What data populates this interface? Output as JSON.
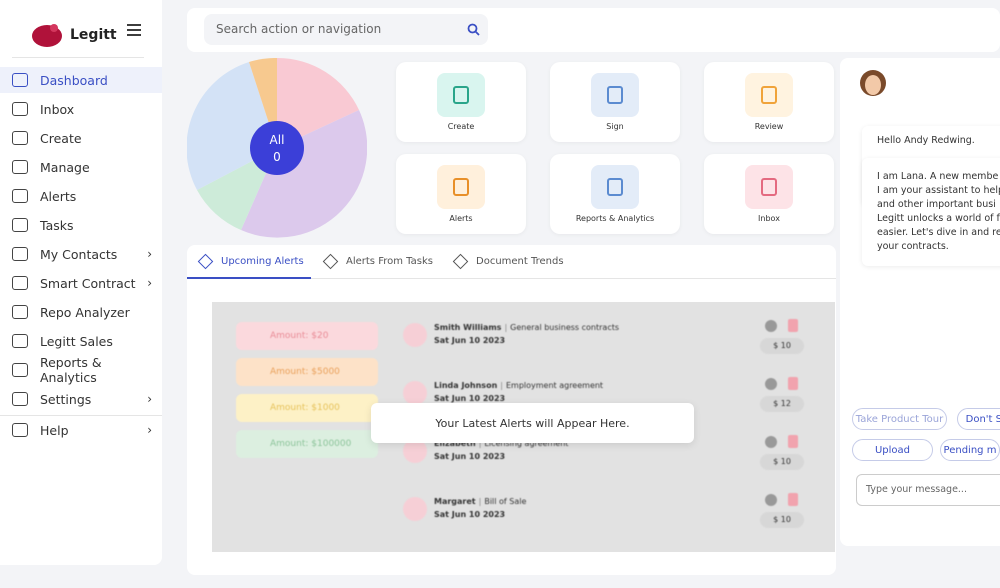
{
  "brand": "Legitt",
  "search_placeholder": "Search action or navigation",
  "nav": [
    {
      "label": "Dashboard",
      "active": true
    },
    {
      "label": "Inbox"
    },
    {
      "label": "Create"
    },
    {
      "label": "Manage"
    },
    {
      "label": "Alerts"
    },
    {
      "label": "Tasks"
    },
    {
      "label": "My Contacts",
      "submenu": true
    },
    {
      "label": "Smart Contract",
      "submenu": true
    },
    {
      "label": "Repo Analyzer"
    },
    {
      "label": "Legitt Sales"
    },
    {
      "label": "Reports & Analytics"
    },
    {
      "label": "Settings",
      "submenu": true
    },
    {
      "label": "Help",
      "submenu": true
    }
  ],
  "summary": {
    "label": "All",
    "count": 0
  },
  "quick_actions": [
    "Create",
    "Sign",
    "Review",
    "Alerts",
    "Reports & Analytics",
    "Inbox"
  ],
  "tabs": [
    "Upcoming Alerts",
    "Alerts From Tasks",
    "Document Trends"
  ],
  "amounts": [
    "Amount: $20",
    "Amount: $5000",
    "Amount: $1000",
    "Amount: $100000"
  ],
  "alerts": [
    {
      "name": "Smith Williams",
      "type": "General business contracts",
      "date": "Sat Jun 10 2023",
      "price": "$ 10"
    },
    {
      "name": "Linda Johnson",
      "type": "Employment agreement",
      "date": "Sat Jun 10 2023",
      "price": "$ 12"
    },
    {
      "name": "Elizabeth",
      "type": "Licensing agreement",
      "date": "Sat Jun 10 2023",
      "price": "$ 10"
    },
    {
      "name": "Margaret",
      "type": "Bill of Sale",
      "date": "Sat Jun 10 2023",
      "price": "$ 10"
    }
  ],
  "empty_message": "Your Latest Alerts will Appear Here.",
  "chat": {
    "greeting": "Hello Andy Redwing.",
    "message": [
      "I am Lana. A new membe",
      "I am your assistant to help",
      "and other important busi",
      "Legitt unlocks a world of f",
      "easier. Let's dive in and re",
      "your contracts."
    ],
    "chips": [
      "Take Product Tour",
      "Don't Sh",
      "Upload",
      "Pending m"
    ],
    "input_placeholder": "Type your message..."
  }
}
